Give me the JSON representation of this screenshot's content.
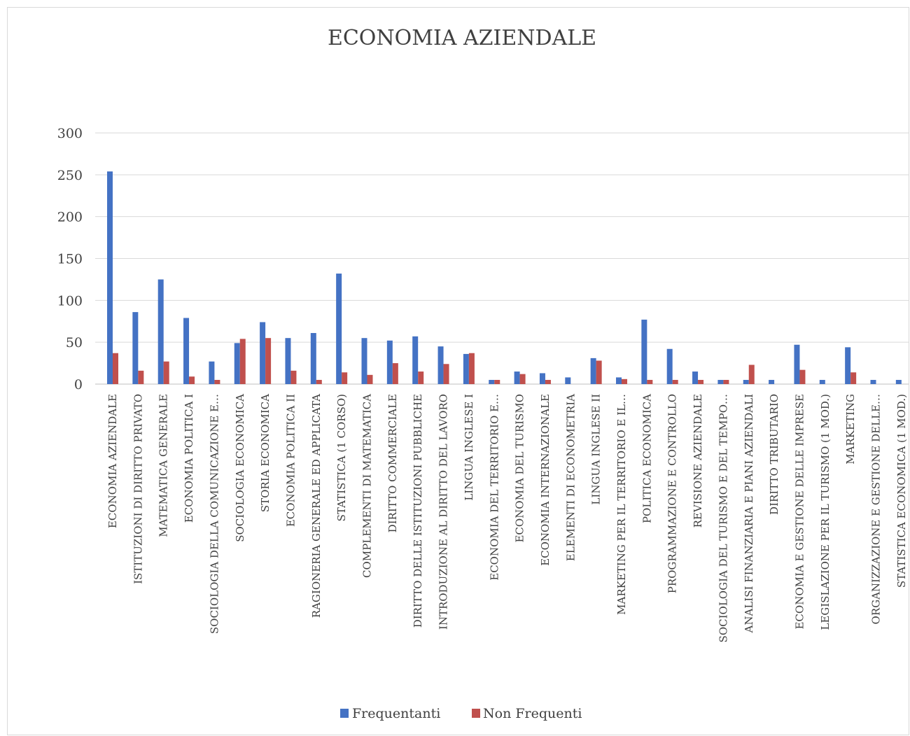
{
  "chart_data": {
    "type": "bar",
    "title": "ECONOMIA AZIENDALE",
    "xlabel": "",
    "ylabel": "",
    "ylim": [
      0,
      300
    ],
    "yticks": [
      0,
      50,
      100,
      150,
      200,
      250,
      300
    ],
    "grid": true,
    "legend_position": "bottom",
    "categories": [
      "ECONOMIA AZIENDALE",
      "ISTITUZIONI DI DIRITTO PRIVATO",
      "MATEMATICA GENERALE",
      "ECONOMIA POLITICA I",
      "SOCIOLOGIA DELLA COMUNICAZIONE E…",
      "SOCIOLOGIA ECONOMICA",
      "STORIA ECONOMICA",
      "ECONOMIA POLITICA II",
      "RAGIONERIA GENERALE ED APPLICATA",
      "STATISTICA (1 CORSO)",
      "COMPLEMENTI DI MATEMATICA",
      "DIRITTO COMMERCIALE",
      "DIRITTO DELLE ISTITUZIONI PUBBLICHE",
      "INTRODUZIONE AL DIRITTO DEL LAVORO",
      "LINGUA INGLESE I",
      "ECONOMIA DEL TERRITORIO E…",
      "ECONOMIA DEL TURISMO",
      "ECONOMIA INTERNAZIONALE",
      "ELEMENTI DI ECONOMETRIA",
      "LINGUA INGLESE II",
      "MARKETING PER IL TERRITORIO E IL…",
      "POLITICA ECONOMICA",
      "PROGRAMMAZIONE E CONTROLLO",
      "REVISIONE AZIENDALE",
      "SOCIOLOGIA DEL TURISMO E DEL TEMPO…",
      "ANALISI FINANZIARIA E PIANI AZIENDALI",
      "DIRITTO TRIBUTARIO",
      "ECONOMIA E GESTIONE DELLE  IMPRESE",
      "LEGISLAZIONE PER IL TURISMO (1 MOD.)",
      "MARKETING",
      "ORGANIZZAZIONE E GESTIONE DELLE…",
      "STATISTICA ECONOMICA (1 MOD.)"
    ],
    "series": [
      {
        "name": "Frequentanti",
        "color": "#4472C4",
        "values": [
          254,
          86,
          125,
          79,
          27,
          49,
          74,
          55,
          61,
          132,
          55,
          52,
          57,
          45,
          36,
          5,
          15,
          13,
          8,
          31,
          8,
          77,
          42,
          15,
          5,
          5,
          5,
          47,
          5,
          44,
          5,
          5
        ]
      },
      {
        "name": "Non Frequenti",
        "color": "#C0504D",
        "values": [
          37,
          16,
          27,
          9,
          5,
          54,
          55,
          16,
          5,
          14,
          11,
          25,
          15,
          24,
          37,
          5,
          12,
          5,
          0,
          28,
          6,
          5,
          5,
          5,
          5,
          23,
          0,
          17,
          0,
          14,
          0,
          0
        ]
      }
    ]
  }
}
